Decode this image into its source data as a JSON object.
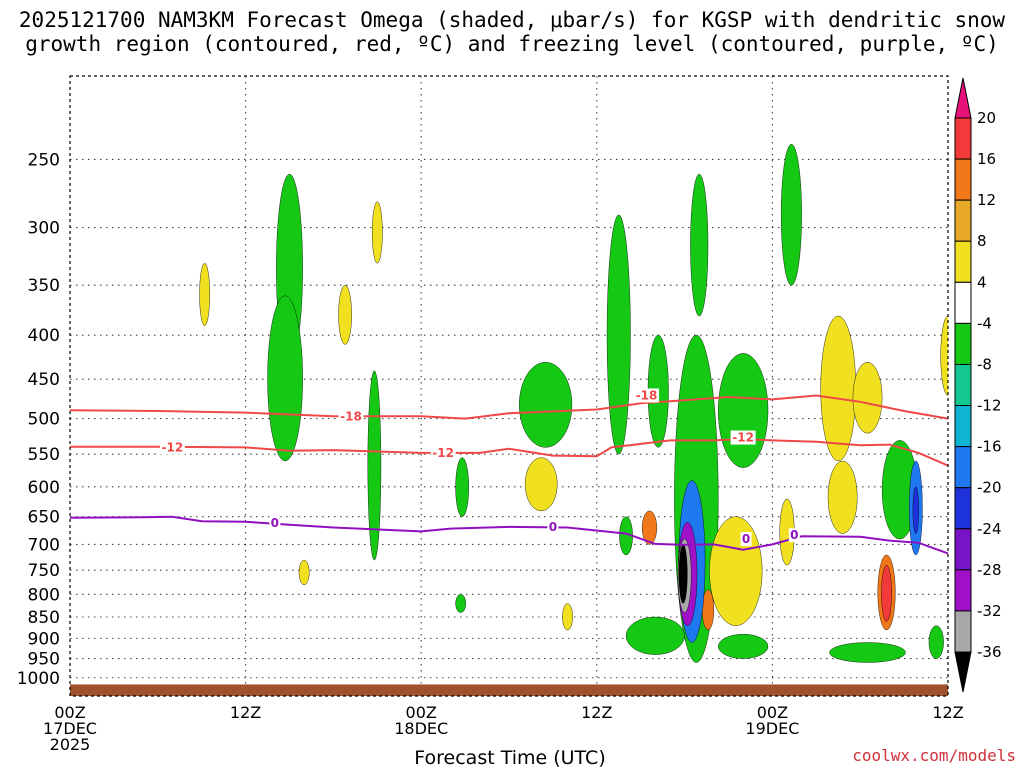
{
  "title": {
    "line1": "2025121700 NAM3KM Forecast Omega (shaded, μbar/s) for KGSP with dendritic snow",
    "line2": "growth region (contoured, red, ºC) and freezing level (contoured, purple, ºC)"
  },
  "credit": "coolwx.com/models",
  "chart_data": {
    "type": "heatmap",
    "title": "2025121700 NAM3KM Forecast Omega (shaded, μbar/s) for KGSP with dendritic snow growth region (contoured, red, ºC) and freezing level (contoured, purple, ºC)",
    "xlabel": "Forecast Time (UTC)",
    "ylabel": "",
    "x_range_hours": [
      0,
      60
    ],
    "x_ticks": [
      {
        "hour": 0,
        "l1": "00Z",
        "l2": "17DEC",
        "l3": "2025"
      },
      {
        "hour": 12,
        "l1": "12Z",
        "l2": "",
        "l3": ""
      },
      {
        "hour": 24,
        "l1": "00Z",
        "l2": "18DEC",
        "l3": ""
      },
      {
        "hour": 36,
        "l1": "12Z",
        "l2": "",
        "l3": ""
      },
      {
        "hour": 48,
        "l1": "00Z",
        "l2": "19DEC",
        "l3": ""
      },
      {
        "hour": 60,
        "l1": "12Z",
        "l2": "",
        "l3": ""
      }
    ],
    "y_scale": "log-pressure",
    "y_range_hpa": [
      1050,
      200
    ],
    "y_ticks": [
      250,
      300,
      350,
      400,
      450,
      500,
      550,
      600,
      650,
      700,
      750,
      800,
      850,
      900,
      950,
      1000
    ],
    "grid": "dotted",
    "colorbar": {
      "labels": [
        20,
        16,
        12,
        8,
        4,
        -4,
        -8,
        -12,
        -16,
        -20,
        -24,
        -28,
        -32,
        -36
      ],
      "colors": [
        "#e8127a",
        "#f23a3a",
        "#f07818",
        "#e8a828",
        "#f0e020",
        "#ffffff",
        "#14c814",
        "#12c890",
        "#0fb4d2",
        "#1e78f0",
        "#1e32dc",
        "#7814c8",
        "#a010c8",
        "#a8a8a8",
        "#000000"
      ]
    },
    "contours": [
      {
        "name": "-18",
        "color": "#f04848",
        "points": [
          [
            0,
            489
          ],
          [
            6,
            490
          ],
          [
            12,
            492
          ],
          [
            18,
            497
          ],
          [
            24,
            497
          ],
          [
            27,
            500
          ],
          [
            30,
            493
          ],
          [
            36,
            488
          ],
          [
            39,
            480
          ],
          [
            42,
            476
          ],
          [
            45,
            472
          ],
          [
            48,
            475
          ],
          [
            51,
            470
          ],
          [
            54,
            478
          ],
          [
            57,
            490
          ],
          [
            60,
            500
          ]
        ]
      },
      {
        "name": "-12",
        "color": "#f04848",
        "points": [
          [
            0,
            539
          ],
          [
            6,
            539
          ],
          [
            12,
            540
          ],
          [
            15,
            545
          ],
          [
            18,
            544
          ],
          [
            24,
            548
          ],
          [
            28,
            548
          ],
          [
            30,
            542
          ],
          [
            33,
            552
          ],
          [
            36,
            553
          ],
          [
            37,
            540
          ],
          [
            39,
            535
          ],
          [
            41,
            530
          ],
          [
            44,
            530
          ],
          [
            46,
            528
          ],
          [
            48,
            530
          ],
          [
            51,
            532
          ],
          [
            54,
            537
          ],
          [
            56,
            536
          ],
          [
            58,
            548
          ],
          [
            60,
            567
          ]
        ]
      },
      {
        "name": "0",
        "color": "#9010c0",
        "points": [
          [
            0,
            652
          ],
          [
            5,
            651
          ],
          [
            7,
            650
          ],
          [
            9,
            658
          ],
          [
            12,
            659
          ],
          [
            15,
            664
          ],
          [
            18,
            669
          ],
          [
            24,
            676
          ],
          [
            26,
            671
          ],
          [
            30,
            668
          ],
          [
            34,
            669
          ],
          [
            38,
            680
          ],
          [
            40,
            699
          ],
          [
            42,
            701
          ],
          [
            44,
            700
          ],
          [
            46,
            710
          ],
          [
            48,
            700
          ],
          [
            50,
            685
          ],
          [
            54,
            686
          ],
          [
            56,
            693
          ],
          [
            58,
            697
          ],
          [
            60,
            717
          ]
        ]
      }
    ],
    "contour_labels": [
      {
        "text": "-18",
        "x": 19.2,
        "p": 497,
        "color": "#f04848"
      },
      {
        "text": "-18",
        "x": 39.4,
        "p": 470,
        "color": "#f04848"
      },
      {
        "text": "-12",
        "x": 7.0,
        "p": 540,
        "color": "#f04848"
      },
      {
        "text": "-12",
        "x": 25.5,
        "p": 548,
        "color": "#f04848"
      },
      {
        "text": "-12",
        "x": 46.0,
        "p": 526,
        "color": "#f04848"
      },
      {
        "text": "0",
        "x": 14.0,
        "p": 661,
        "color": "#9010c0"
      },
      {
        "text": "0",
        "x": 33.0,
        "p": 668,
        "color": "#9010c0"
      },
      {
        "text": "0",
        "x": 46.2,
        "p": 690,
        "color": "#9010c0"
      },
      {
        "text": "0",
        "x": 49.5,
        "p": 683,
        "color": "#9010c0"
      }
    ],
    "shaded_regions": [
      {
        "v": -8,
        "x": 15.0,
        "p": 300,
        "wx": 0.9,
        "hp": [
          260,
          430
        ]
      },
      {
        "v": -8,
        "x": 14.7,
        "p": 420,
        "wx": 1.2,
        "hp": [
          360,
          560
        ]
      },
      {
        "v": -8,
        "x": 20.8,
        "p": 560,
        "wx": 0.45,
        "hp": [
          440,
          730
        ]
      },
      {
        "v": -8,
        "x": 26.8,
        "p": 600,
        "wx": 0.45,
        "hp": [
          555,
          650
        ]
      },
      {
        "v": -8,
        "x": 32.5,
        "p": 480,
        "wx": 1.8,
        "hp": [
          430,
          540
        ]
      },
      {
        "v": -8,
        "x": 37.5,
        "p": 400,
        "wx": 0.8,
        "hp": [
          290,
          550
        ]
      },
      {
        "v": -8,
        "x": 40.2,
        "p": 460,
        "wx": 0.7,
        "hp": [
          400,
          540
        ]
      },
      {
        "v": -8,
        "x": 43.0,
        "p": 300,
        "wx": 0.6,
        "hp": [
          260,
          380
        ]
      },
      {
        "v": -8,
        "x": 42.8,
        "p": 540,
        "wx": 1.5,
        "hp": [
          400,
          960
        ]
      },
      {
        "v": -8,
        "x": 46.0,
        "p": 480,
        "wx": 1.7,
        "hp": [
          420,
          570
        ]
      },
      {
        "v": -8,
        "x": 49.3,
        "p": 290,
        "wx": 0.7,
        "hp": [
          240,
          350
        ]
      },
      {
        "v": -8,
        "x": 56.7,
        "p": 600,
        "wx": 1.2,
        "hp": [
          530,
          690
        ]
      },
      {
        "v": -8,
        "x": 54.5,
        "p": 930,
        "wx": 2.6,
        "hp": [
          910,
          960
        ]
      },
      {
        "v": -8,
        "x": 40.0,
        "p": 880,
        "wx": 2.0,
        "hp": [
          850,
          940
        ]
      },
      {
        "v": -8,
        "x": 46.0,
        "p": 920,
        "wx": 1.7,
        "hp": [
          890,
          950
        ]
      },
      {
        "v": -8,
        "x": 38.0,
        "p": 680,
        "wx": 0.45,
        "hp": [
          650,
          720
        ]
      },
      {
        "v": -8,
        "x": 26.7,
        "p": 820,
        "wx": 0.35,
        "hp": [
          800,
          840
        ]
      },
      {
        "v": -8,
        "x": 59.2,
        "p": 900,
        "wx": 0.5,
        "hp": [
          870,
          950
        ]
      },
      {
        "v": 4,
        "x": 9.2,
        "p": 360,
        "wx": 0.35,
        "hp": [
          330,
          390
        ]
      },
      {
        "v": 4,
        "x": 21.0,
        "p": 300,
        "wx": 0.35,
        "hp": [
          280,
          330
        ]
      },
      {
        "v": 4,
        "x": 18.8,
        "p": 380,
        "wx": 0.45,
        "hp": [
          350,
          410
        ]
      },
      {
        "v": 4,
        "x": 32.2,
        "p": 590,
        "wx": 1.1,
        "hp": [
          555,
          640
        ]
      },
      {
        "v": 4,
        "x": 45.5,
        "p": 720,
        "wx": 1.8,
        "hp": [
          650,
          870
        ]
      },
      {
        "v": 4,
        "x": 52.5,
        "p": 420,
        "wx": 1.2,
        "hp": [
          380,
          560
        ]
      },
      {
        "v": 4,
        "x": 52.8,
        "p": 640,
        "wx": 1.0,
        "hp": [
          560,
          680
        ]
      },
      {
        "v": 4,
        "x": 54.5,
        "p": 460,
        "wx": 1.0,
        "hp": [
          430,
          520
        ]
      },
      {
        "v": 4,
        "x": 16.0,
        "p": 750,
        "wx": 0.35,
        "hp": [
          730,
          780
        ]
      },
      {
        "v": 4,
        "x": 34.0,
        "p": 850,
        "wx": 0.35,
        "hp": [
          820,
          880
        ]
      },
      {
        "v": 4,
        "x": 49.0,
        "p": 680,
        "wx": 0.5,
        "hp": [
          620,
          740
        ]
      },
      {
        "v": 4,
        "x": 60.0,
        "p": 420,
        "wx": 0.5,
        "hp": [
          380,
          470
        ]
      },
      {
        "v": 12,
        "x": 39.6,
        "p": 670,
        "wx": 0.5,
        "hp": [
          640,
          700
        ]
      },
      {
        "v": 12,
        "x": 55.8,
        "p": 800,
        "wx": 0.6,
        "hp": [
          720,
          880
        ]
      },
      {
        "v": 12,
        "x": 43.6,
        "p": 830,
        "wx": 0.4,
        "hp": [
          790,
          880
        ]
      },
      {
        "v": 16,
        "x": 55.8,
        "p": 800,
        "wx": 0.35,
        "hp": [
          740,
          860
        ]
      },
      {
        "v": -16,
        "x": 42.5,
        "p": 720,
        "wx": 0.9,
        "hp": [
          590,
          910
        ]
      },
      {
        "v": -28,
        "x": 42.2,
        "p": 730,
        "wx": 0.65,
        "hp": [
          660,
          870
        ]
      },
      {
        "v": -32,
        "x": 42.0,
        "p": 740,
        "wx": 0.45,
        "hp": [
          690,
          840
        ]
      },
      {
        "v": -36,
        "x": 41.9,
        "p": 745,
        "wx": 0.3,
        "hp": [
          700,
          820
        ]
      },
      {
        "v": -16,
        "x": 57.8,
        "p": 640,
        "wx": 0.45,
        "hp": [
          560,
          720
        ]
      },
      {
        "v": -20,
        "x": 57.8,
        "p": 630,
        "wx": 0.2,
        "hp": [
          600,
          680
        ]
      }
    ],
    "ground": {
      "color": "#a0522d",
      "top_hpa": 1018
    }
  }
}
